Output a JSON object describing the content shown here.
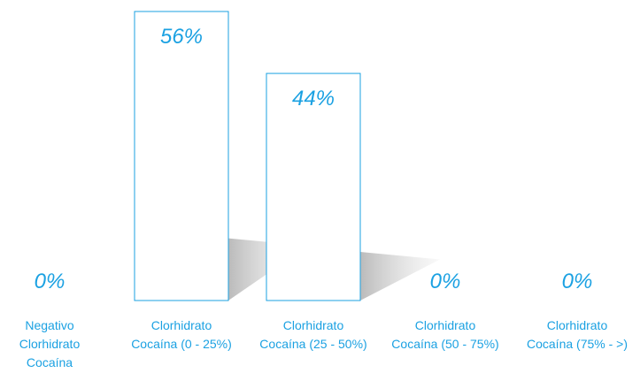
{
  "chart_data": {
    "type": "bar",
    "categories": [
      [
        "Negativo",
        "Clorhidrato",
        "Cocaína"
      ],
      [
        "Clorhidrato",
        "Cocaína (0 - 25%)"
      ],
      [
        "Clorhidrato",
        "Cocaína (25 - 50%)"
      ],
      [
        "Clorhidrato",
        "Cocaína (50 - 75%)"
      ],
      [
        "Clorhidrato",
        "Cocaína (75% - >)"
      ]
    ],
    "values": [
      0,
      56,
      44,
      0,
      0
    ],
    "value_labels": [
      "0%",
      "56%",
      "44%",
      "0%",
      "0%"
    ],
    "ylim": [
      0,
      100
    ],
    "grid": false,
    "legend": "none",
    "title": "",
    "xlabel": "",
    "ylabel": "",
    "colors": {
      "bar_stroke": "#1ba1e2",
      "value_text": "#1ba1e2",
      "category_text": "#1ba1e2",
      "shadow": "#b8b8b8"
    }
  }
}
